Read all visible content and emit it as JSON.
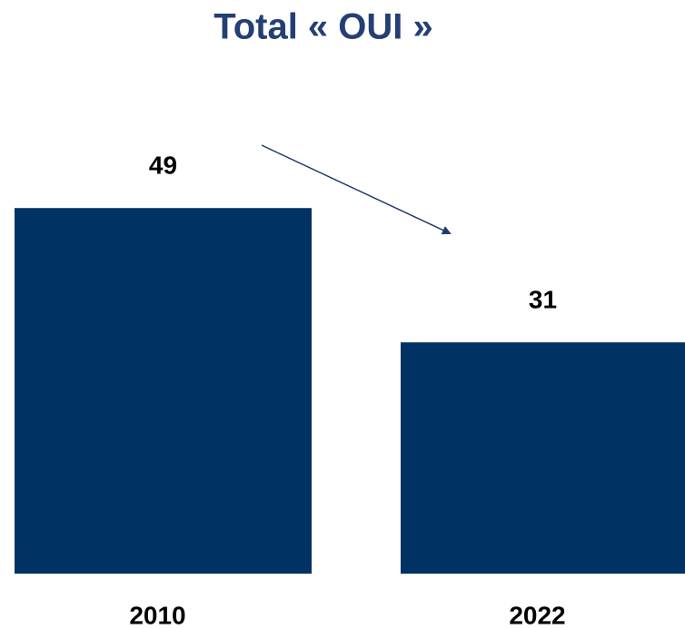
{
  "chart_data": {
    "type": "bar",
    "title": "Total « OUI »",
    "categories": [
      "2010",
      "2022"
    ],
    "values": [
      49,
      31
    ],
    "color": "#003263"
  }
}
